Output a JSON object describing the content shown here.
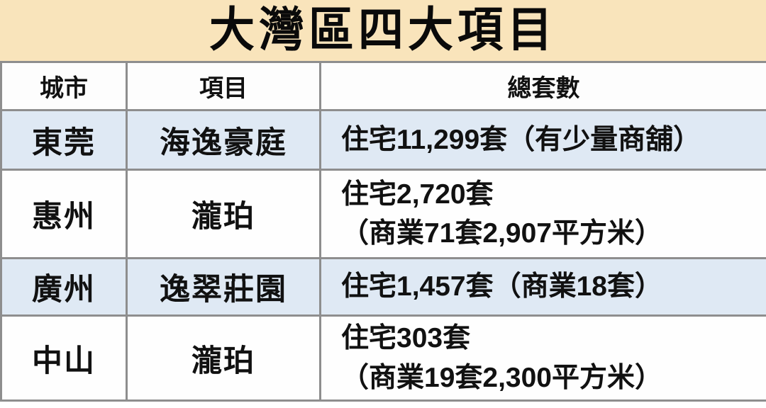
{
  "title": "大灣區四大項目",
  "table": {
    "headers": [
      {
        "label": "城市"
      },
      {
        "label": "項目"
      },
      {
        "label": "總套數"
      }
    ],
    "rows": [
      {
        "city": "東莞",
        "project": "海逸豪庭",
        "units": [
          "住宅11,299套（有少量商舖）"
        ]
      },
      {
        "city": "惠州",
        "project": "瀧珀",
        "units": [
          "住宅2,720套",
          "（商業71套2,907平方米）"
        ]
      },
      {
        "city": "廣州",
        "project": "逸翠莊園",
        "units": [
          "住宅1,457套（商業18套）"
        ]
      },
      {
        "city": "中山",
        "project": "瀧珀",
        "units": [
          "住宅303套",
          "（商業19套2,300平方米）"
        ]
      }
    ]
  },
  "colors": {
    "banner_bg": "#F9E4BB",
    "header_text": "#3E9CC6",
    "row_alt_bg": "#DFE9F4",
    "row_bg": "#FEFEFE",
    "border": "#8E8E8E",
    "text": "#111111"
  }
}
